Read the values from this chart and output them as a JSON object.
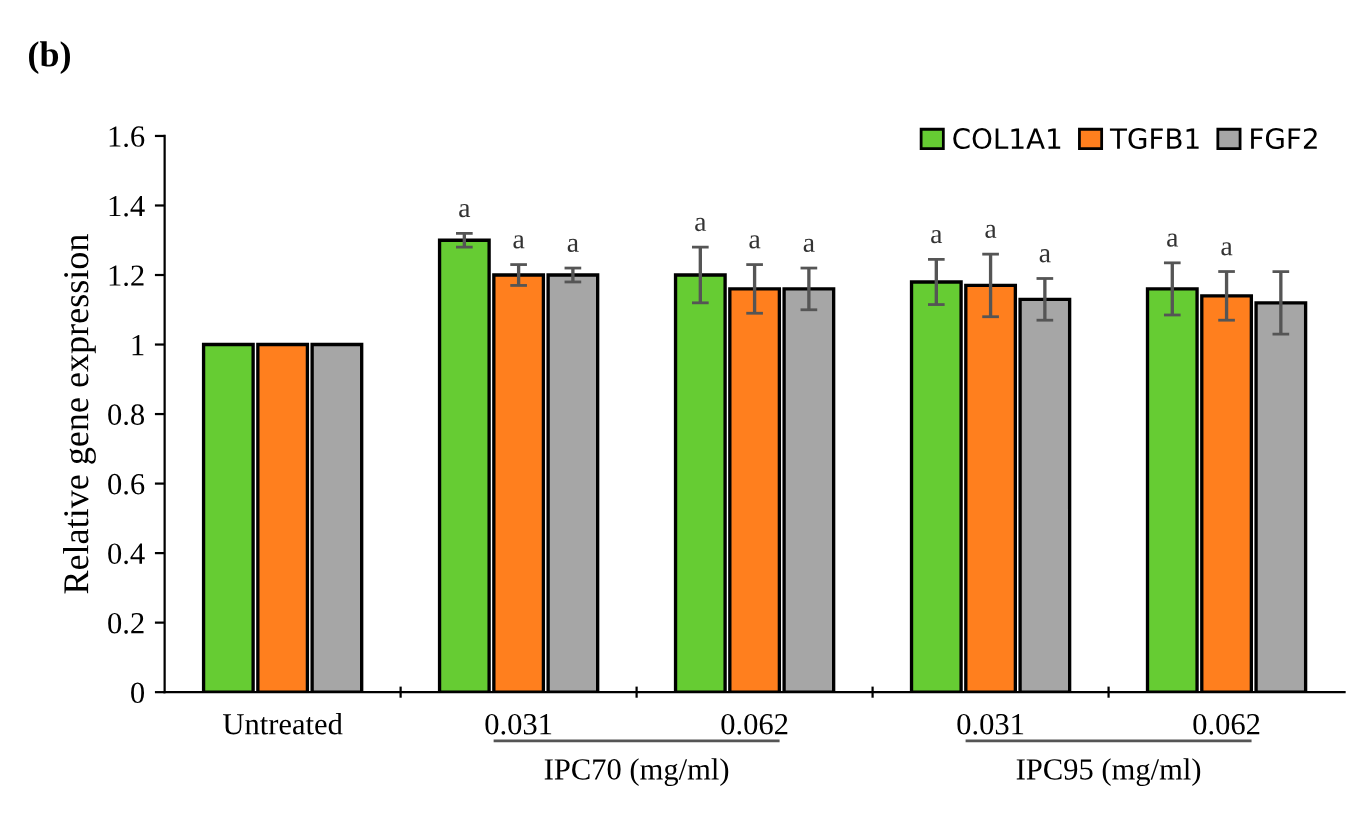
{
  "chart_data": {
    "type": "bar",
    "title": "(b)",
    "ylabel": "Relative gene expression",
    "categories": [
      "Untreated",
      "0.031",
      "0.062",
      "0.031",
      "0.062"
    ],
    "series": [
      {
        "name": "COL1A1",
        "color": "#66cc33",
        "values": [
          1,
          1.3,
          1.2,
          1.18,
          1.16
        ],
        "errors": [
          null,
          0.02,
          0.08,
          0.065,
          0.075
        ],
        "value_labels": [
          null,
          "a",
          "a",
          "a",
          "a"
        ]
      },
      {
        "name": "TGFB1",
        "color": "#ff7f1e",
        "values": [
          1,
          1.2,
          1.16,
          1.17,
          1.14
        ],
        "errors": [
          null,
          0.03,
          0.07,
          0.09,
          0.07
        ],
        "value_labels": [
          null,
          "a",
          "a",
          "a",
          "a"
        ]
      },
      {
        "name": "FGF2",
        "color": "#a6a6a6",
        "values": [
          1,
          1.2,
          1.16,
          1.13,
          1.12
        ],
        "errors": [
          null,
          0.02,
          0.06,
          0.06,
          0.09
        ],
        "value_labels": [
          null,
          "a",
          "a",
          "a",
          null
        ]
      }
    ],
    "ylim": [
      0,
      1.6
    ],
    "yticks": [
      0,
      0.2,
      0.4,
      0.6,
      0.8,
      1,
      1.2,
      1.4,
      1.6
    ],
    "annotations": [
      "IPC70 (mg/ml)",
      "IPC95 (mg/ml)"
    ],
    "grid": false,
    "legend": "top right"
  }
}
